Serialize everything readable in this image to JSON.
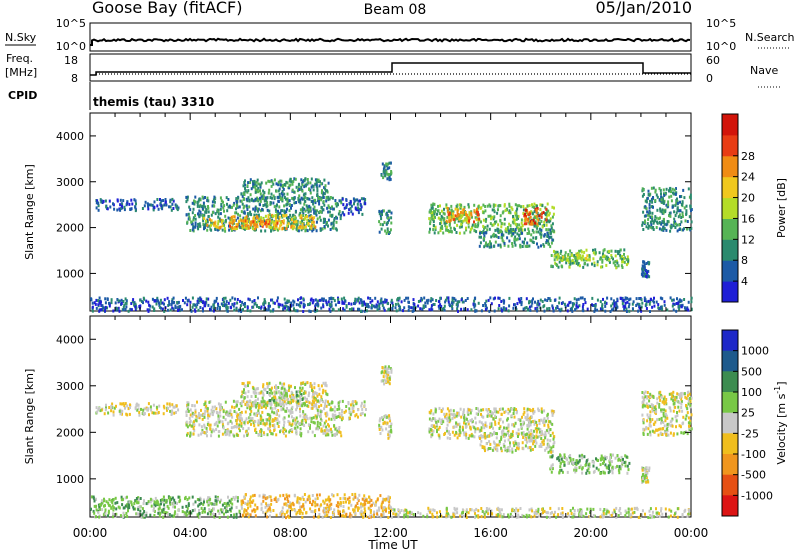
{
  "header": {
    "station": "Goose Bay (fitACF)",
    "beam": "Beam 08",
    "date": "05/Jan/2010"
  },
  "top_panels": {
    "nsky_label": "N.Sky",
    "nsky_ticks": [
      "10^5",
      "10^0"
    ],
    "nsearch_label": "N.Search",
    "nsearch_ticks": [
      "10^5",
      "10^0"
    ],
    "freq_label": "Freq.",
    "freq_unit": "[MHz]",
    "freq_ticks": [
      "18",
      "8"
    ],
    "nave_label": "Nave",
    "nave_ticks": [
      "60",
      "0"
    ],
    "cpid_label": "CPID",
    "cpid_text": "themis (tau) 3310"
  },
  "chart_data": [
    {
      "type": "heatmap",
      "name": "power-panel",
      "ylabel": "Slant Range [km]",
      "xlabel": "",
      "yticks": [
        "1000",
        "2000",
        "3000",
        "4000"
      ],
      "ylim": [
        180,
        4500
      ],
      "xlim": [
        0,
        24
      ],
      "colorbar": {
        "label": "Power [dB]",
        "ticks": [
          "4",
          "8",
          "12",
          "16",
          "20",
          "24",
          "28"
        ],
        "colors": [
          "#1f1fd6",
          "#1c5aa6",
          "#2a8a6e",
          "#56b455",
          "#b4dc28",
          "#f0c81e",
          "#f08c14",
          "#e83c14",
          "#d2140a"
        ]
      },
      "regions": [
        {
          "t0": 0.2,
          "t1": 3.5,
          "r0": 2400,
          "r1": 2650,
          "level": 1
        },
        {
          "t0": 3.8,
          "t1": 10.0,
          "r0": 1950,
          "r1": 2700,
          "level": 2
        },
        {
          "t0": 4.5,
          "t1": 9.0,
          "r0": 2000,
          "r1": 2300,
          "level": 5
        },
        {
          "t0": 5.5,
          "t1": 7.5,
          "r0": 2050,
          "r1": 2200,
          "level": 6
        },
        {
          "t0": 6.0,
          "t1": 9.5,
          "r0": 2600,
          "r1": 3100,
          "level": 2
        },
        {
          "t0": 10.0,
          "t1": 11.0,
          "r0": 2300,
          "r1": 2700,
          "level": 1
        },
        {
          "t0": 11.5,
          "t1": 12.0,
          "r0": 1900,
          "r1": 2400,
          "level": 2
        },
        {
          "t0": 11.6,
          "t1": 12.0,
          "r0": 3050,
          "r1": 3450,
          "level": 2
        },
        {
          "t0": 13.5,
          "t1": 18.5,
          "r0": 1900,
          "r1": 2550,
          "level": 3
        },
        {
          "t0": 14.2,
          "t1": 15.5,
          "r0": 2150,
          "r1": 2450,
          "level": 6
        },
        {
          "t0": 17.3,
          "t1": 18.2,
          "r0": 2100,
          "r1": 2450,
          "level": 7
        },
        {
          "t0": 15.5,
          "t1": 18.5,
          "r0": 1600,
          "r1": 2000,
          "level": 2
        },
        {
          "t0": 18.3,
          "t1": 21.5,
          "r0": 1150,
          "r1": 1550,
          "level": 3
        },
        {
          "t0": 18.5,
          "t1": 20.0,
          "r0": 1300,
          "r1": 1450,
          "level": 4
        },
        {
          "t0": 22.0,
          "t1": 22.3,
          "r0": 950,
          "r1": 1300,
          "level": 1
        },
        {
          "t0": 22.0,
          "t1": 24.0,
          "r0": 1950,
          "r1": 2900,
          "level": 2
        },
        {
          "t0": 0.0,
          "t1": 24.0,
          "r0": 200,
          "r1": 500,
          "level": 1
        }
      ]
    },
    {
      "type": "heatmap",
      "name": "velocity-panel",
      "ylabel": "Slant Range [km]",
      "xlabel": "Time UT",
      "yticks": [
        "1000",
        "2000",
        "3000",
        "4000"
      ],
      "ylim": [
        180,
        4500
      ],
      "xlim": [
        0,
        24
      ],
      "colorbar": {
        "label": "Velocity [m s",
        "label_sup": "-1",
        "label_end": "]",
        "ticks": [
          "1000",
          "500",
          "100",
          "25",
          "-25",
          "-100",
          "-500",
          "-1000"
        ],
        "colors": [
          "#1e28c8",
          "#1e5a8c",
          "#3c8c50",
          "#78c846",
          "#c8c8c8",
          "#f0be1e",
          "#f0961e",
          "#e65014",
          "#dc1414"
        ]
      },
      "regions": [
        {
          "t0": 0.2,
          "t1": 3.5,
          "r0": 2400,
          "r1": 2650,
          "level": 4
        },
        {
          "t0": 3.8,
          "t1": 10.0,
          "r0": 1950,
          "r1": 2700,
          "level": 4
        },
        {
          "t0": 6.0,
          "t1": 9.5,
          "r0": 2600,
          "r1": 3100,
          "level": 4
        },
        {
          "t0": 7.0,
          "t1": 8.5,
          "r0": 2700,
          "r1": 2900,
          "level": 3
        },
        {
          "t0": 10.0,
          "t1": 11.0,
          "r0": 2300,
          "r1": 2700,
          "level": 4
        },
        {
          "t0": 11.5,
          "t1": 12.0,
          "r0": 1900,
          "r1": 2400,
          "level": 4
        },
        {
          "t0": 11.6,
          "t1": 12.0,
          "r0": 3050,
          "r1": 3450,
          "level": 4
        },
        {
          "t0": 13.5,
          "t1": 18.5,
          "r0": 1900,
          "r1": 2550,
          "level": 4
        },
        {
          "t0": 15.5,
          "t1": 18.5,
          "r0": 1600,
          "r1": 2000,
          "level": 4
        },
        {
          "t0": 18.3,
          "t1": 21.5,
          "r0": 1150,
          "r1": 1550,
          "level": 3
        },
        {
          "t0": 22.0,
          "t1": 22.3,
          "r0": 950,
          "r1": 1300,
          "level": 4
        },
        {
          "t0": 22.0,
          "t1": 24.0,
          "r0": 1950,
          "r1": 2900,
          "level": 4
        },
        {
          "t0": 0.0,
          "t1": 6.0,
          "r0": 200,
          "r1": 650,
          "level": 3
        },
        {
          "t0": 6.0,
          "t1": 12.0,
          "r0": 200,
          "r1": 700,
          "level": 5
        },
        {
          "t0": 12.0,
          "t1": 24.0,
          "r0": 200,
          "r1": 400,
          "level": 4
        }
      ]
    }
  ],
  "time_ticks": [
    "00:00",
    "04:00",
    "08:00",
    "12:00",
    "16:00",
    "20:00",
    "00:00"
  ],
  "time_label": "Time UT"
}
